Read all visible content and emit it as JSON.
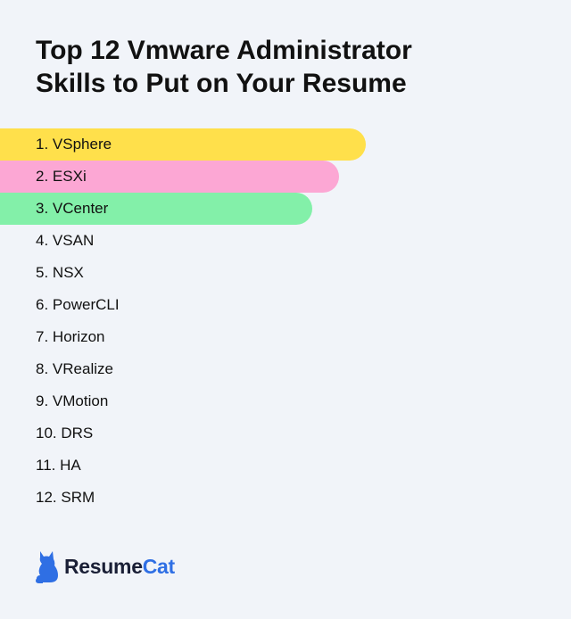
{
  "title": {
    "line1": "Top 12 Vmware Administrator",
    "line2": "Skills to Put on Your Resume"
  },
  "skills": [
    {
      "rank": "1",
      "name": "VSphere",
      "highlight": "#ffe04b",
      "bar_length": 0.64
    },
    {
      "rank": "2",
      "name": "ESXi",
      "highlight": "#fca7d4",
      "bar_length": 0.594
    },
    {
      "rank": "3",
      "name": "VCenter",
      "highlight": "#83f0a9",
      "bar_length": 0.547
    },
    {
      "rank": "4",
      "name": "VSAN"
    },
    {
      "rank": "5",
      "name": "NSX"
    },
    {
      "rank": "6",
      "name": "PowerCLI"
    },
    {
      "rank": "7",
      "name": "Horizon"
    },
    {
      "rank": "8",
      "name": "VRealize"
    },
    {
      "rank": "9",
      "name": "VMotion"
    },
    {
      "rank": "10",
      "name": "DRS"
    },
    {
      "rank": "11",
      "name": "HA"
    },
    {
      "rank": "12",
      "name": "SRM"
    }
  ],
  "brand": {
    "name_part1": "Resume",
    "name_part2": "Cat",
    "icon": "cat-icon",
    "accent_color": "#2f6fe4"
  }
}
